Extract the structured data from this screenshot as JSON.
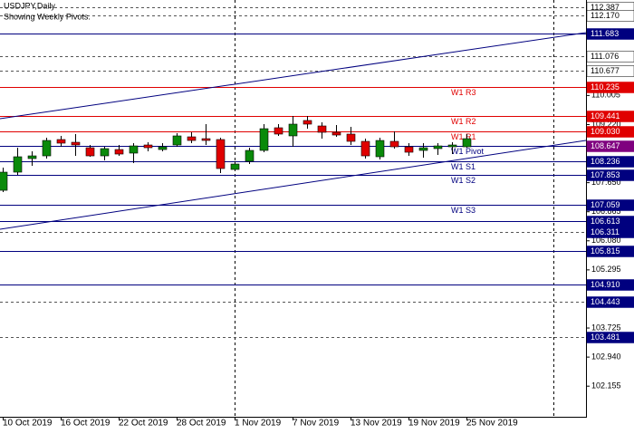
{
  "chart_data": {
    "type": "candlestick",
    "title": "USDJPY,Daily",
    "subtitle": "Showing Weekly Pivots.",
    "ylim": [
      101.328,
      112.583
    ],
    "yticks": [
      110.005,
      {
        "value": 109.22,
        "label": "109.220"
      },
      {
        "value": 107.65,
        "label": "107.650"
      },
      106.865,
      {
        "value": 106.08,
        "label": "106.080"
      },
      105.295,
      103.725,
      {
        "value": 102.94,
        "label": "102.940"
      },
      102.155
    ],
    "categories": [
      "10 Oct 2019",
      null,
      null,
      null,
      "16 Oct 2019",
      null,
      null,
      null,
      "22 Oct 2019",
      null,
      null,
      null,
      "28 Oct 2019",
      null,
      null,
      null,
      "1 Nov 2019",
      null,
      null,
      null,
      "7 Nov 2019",
      null,
      null,
      null,
      "13 Nov 2019",
      null,
      null,
      null,
      "19 Nov 2019",
      null,
      null,
      null,
      "25 Nov 2019"
    ],
    "up_color": "#0a8a0a",
    "down_color": "#e00000",
    "open": [
      107.444,
      107.934,
      108.301,
      108.374,
      108.815,
      108.741,
      108.594,
      108.374,
      108.545,
      108.448,
      108.668,
      108.545,
      108.668,
      108.888,
      108.839,
      108.815,
      108.007,
      108.227,
      108.521,
      109.133,
      108.913,
      109.329,
      109.182,
      109.01,
      108.962,
      108.766,
      108.35,
      108.766,
      108.619,
      108.521,
      108.57,
      108.619,
      108.619
    ],
    "high": [
      108.056,
      108.594,
      108.497,
      108.864,
      108.913,
      108.962,
      108.668,
      108.619,
      108.668,
      108.717,
      108.741,
      108.717,
      108.986,
      109.01,
      109.231,
      108.864,
      108.227,
      108.594,
      109.231,
      109.231,
      109.451,
      109.451,
      109.28,
      109.206,
      109.157,
      108.839,
      108.864,
      109.035,
      108.717,
      108.717,
      108.717,
      108.741,
      108.962
    ],
    "low": [
      107.395,
      107.86,
      108.105,
      108.301,
      108.619,
      108.374,
      108.35,
      108.252,
      108.374,
      108.178,
      108.497,
      108.497,
      108.619,
      108.717,
      108.668,
      107.909,
      107.983,
      108.154,
      108.472,
      108.913,
      108.619,
      109.108,
      108.839,
      108.888,
      108.668,
      108.301,
      108.276,
      108.57,
      108.374,
      108.325,
      108.399,
      108.423,
      108.594
    ],
    "close": [
      107.934,
      108.35,
      108.374,
      108.79,
      108.717,
      108.668,
      108.374,
      108.57,
      108.423,
      108.643,
      108.594,
      108.619,
      108.913,
      108.79,
      108.79,
      108.032,
      108.154,
      108.521,
      109.108,
      108.962,
      109.231,
      109.231,
      109.01,
      108.937,
      108.766,
      108.374,
      108.79,
      108.619,
      108.472,
      108.594,
      108.643,
      108.668,
      108.839
    ],
    "trendlines": [
      {
        "start": 109.378,
        "end": 111.702,
        "color": "#00007f"
      },
      {
        "start": 106.393,
        "end": 108.791,
        "color": "#00007f"
      }
    ],
    "levels": [
      {
        "value": 112.387,
        "color": "#ffffff",
        "line": "#555555",
        "dashed": true
      },
      {
        "value": 112.17,
        "label": "112.170",
        "color": "#ffffff",
        "line": "#555555",
        "dashed": true
      },
      {
        "value": 111.683,
        "color": "#00007f",
        "line": "#00007f",
        "dashed": false
      },
      {
        "value": 111.076,
        "color": "#ffffff",
        "line": "#555555",
        "dashed": true
      },
      {
        "value": 110.677,
        "color": "#ffffff",
        "line": "#555555",
        "dashed": true
      },
      {
        "value": 110.235,
        "color": "#e00000",
        "line": "#e00000",
        "dashed": false,
        "name": "W1 R3"
      },
      {
        "value": 109.441,
        "color": "#e00000",
        "line": "#e00000",
        "dashed": false,
        "name": "W1 R2"
      },
      {
        "value": 109.03,
        "label": "109.030",
        "color": "#e00000",
        "line": "#e00000",
        "dashed": false,
        "name": "W1 R1"
      },
      {
        "value": 108.647,
        "color": "#7f007f",
        "line": "#00007f",
        "dashed": false,
        "name": "W1 Pivot"
      },
      {
        "value": 108.236,
        "color": "#00007f",
        "line": "#00007f",
        "dashed": false,
        "name": "W1 S1"
      },
      {
        "value": 107.853,
        "color": "#00007f",
        "line": "#00007f",
        "dashed": false,
        "name": "W1 S2"
      },
      {
        "value": 107.059,
        "color": "#00007f",
        "line": "#00007f",
        "dashed": false,
        "name": "W1 S3"
      },
      {
        "value": 106.613,
        "color": "#00007f",
        "line": "#00007f",
        "dashed": false
      },
      {
        "value": 106.311,
        "color": "#00007f",
        "line": "#555555",
        "dashed": true
      },
      {
        "value": 105.815,
        "color": "#00007f",
        "line": "#00007f",
        "dashed": false
      },
      {
        "value": 104.91,
        "label": "104.910",
        "color": "#00007f",
        "line": "#00007f",
        "dashed": false
      },
      {
        "value": 104.443,
        "color": "#00007f",
        "line": "#555555",
        "dashed": true
      },
      {
        "value": 103.481,
        "color": "#00007f",
        "line": "#555555",
        "dashed": true
      }
    ]
  }
}
